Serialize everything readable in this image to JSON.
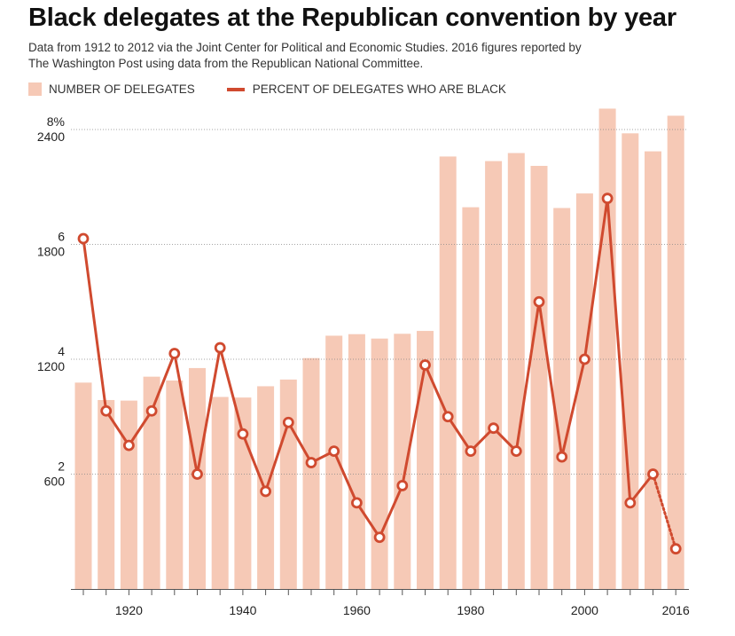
{
  "colors": {
    "bar": "#f6c9b6",
    "line": "#d04a2f",
    "grid": "#888888",
    "axis": "#555555"
  },
  "chart_data": {
    "type": "bar+line",
    "title": "Black delegates at the Republican convention by year",
    "subtitle_line1": "Data from 1912 to 2012 via the Joint Center for Political and Economic Studies. 2016 figures reported by",
    "subtitle_line2": "The Washington Post using data from the Republican National Committee.",
    "legend": {
      "bar_label": "NUMBER OF DELEGATES",
      "line_label": "PERCENT OF DELEGATES WHO ARE BLACK"
    },
    "x_ticks": [
      1920,
      1940,
      1960,
      1980,
      2000,
      2016
    ],
    "y_bar_ticks": [
      600,
      1200,
      1800,
      2400
    ],
    "y_line_ticks": [
      "2",
      "4",
      "6",
      "8%"
    ],
    "ylim_bars": [
      0,
      2400
    ],
    "ylim_percent": [
      0,
      8
    ],
    "grid": "dotted horizontal",
    "years": [
      1912,
      1916,
      1920,
      1924,
      1928,
      1932,
      1936,
      1940,
      1944,
      1948,
      1952,
      1956,
      1960,
      1964,
      1968,
      1972,
      1976,
      1980,
      1984,
      1988,
      1992,
      1996,
      2000,
      2004,
      2008,
      2012,
      2016
    ],
    "series": [
      {
        "name": "NUMBER OF DELEGATES",
        "kind": "bar",
        "values": [
          1078,
          987,
          984,
          1109,
          1089,
          1154,
          1003,
          1000,
          1059,
          1094,
          1206,
          1323,
          1331,
          1308,
          1333,
          1348,
          2259,
          1994,
          2235,
          2277,
          2210,
          1990,
          2066,
          2509,
          2380,
          2286,
          2472
        ]
      },
      {
        "name": "PERCENT OF DELEGATES WHO ARE BLACK",
        "kind": "line",
        "values": [
          6.1,
          3.1,
          2.5,
          3.1,
          4.1,
          2.0,
          4.2,
          2.7,
          1.7,
          2.9,
          2.2,
          2.4,
          1.5,
          0.9,
          1.8,
          3.9,
          3.0,
          2.4,
          2.8,
          2.4,
          5.0,
          2.3,
          4.0,
          6.8,
          1.5,
          2.0,
          0.7
        ],
        "dotted_last_segment": true
      }
    ]
  }
}
